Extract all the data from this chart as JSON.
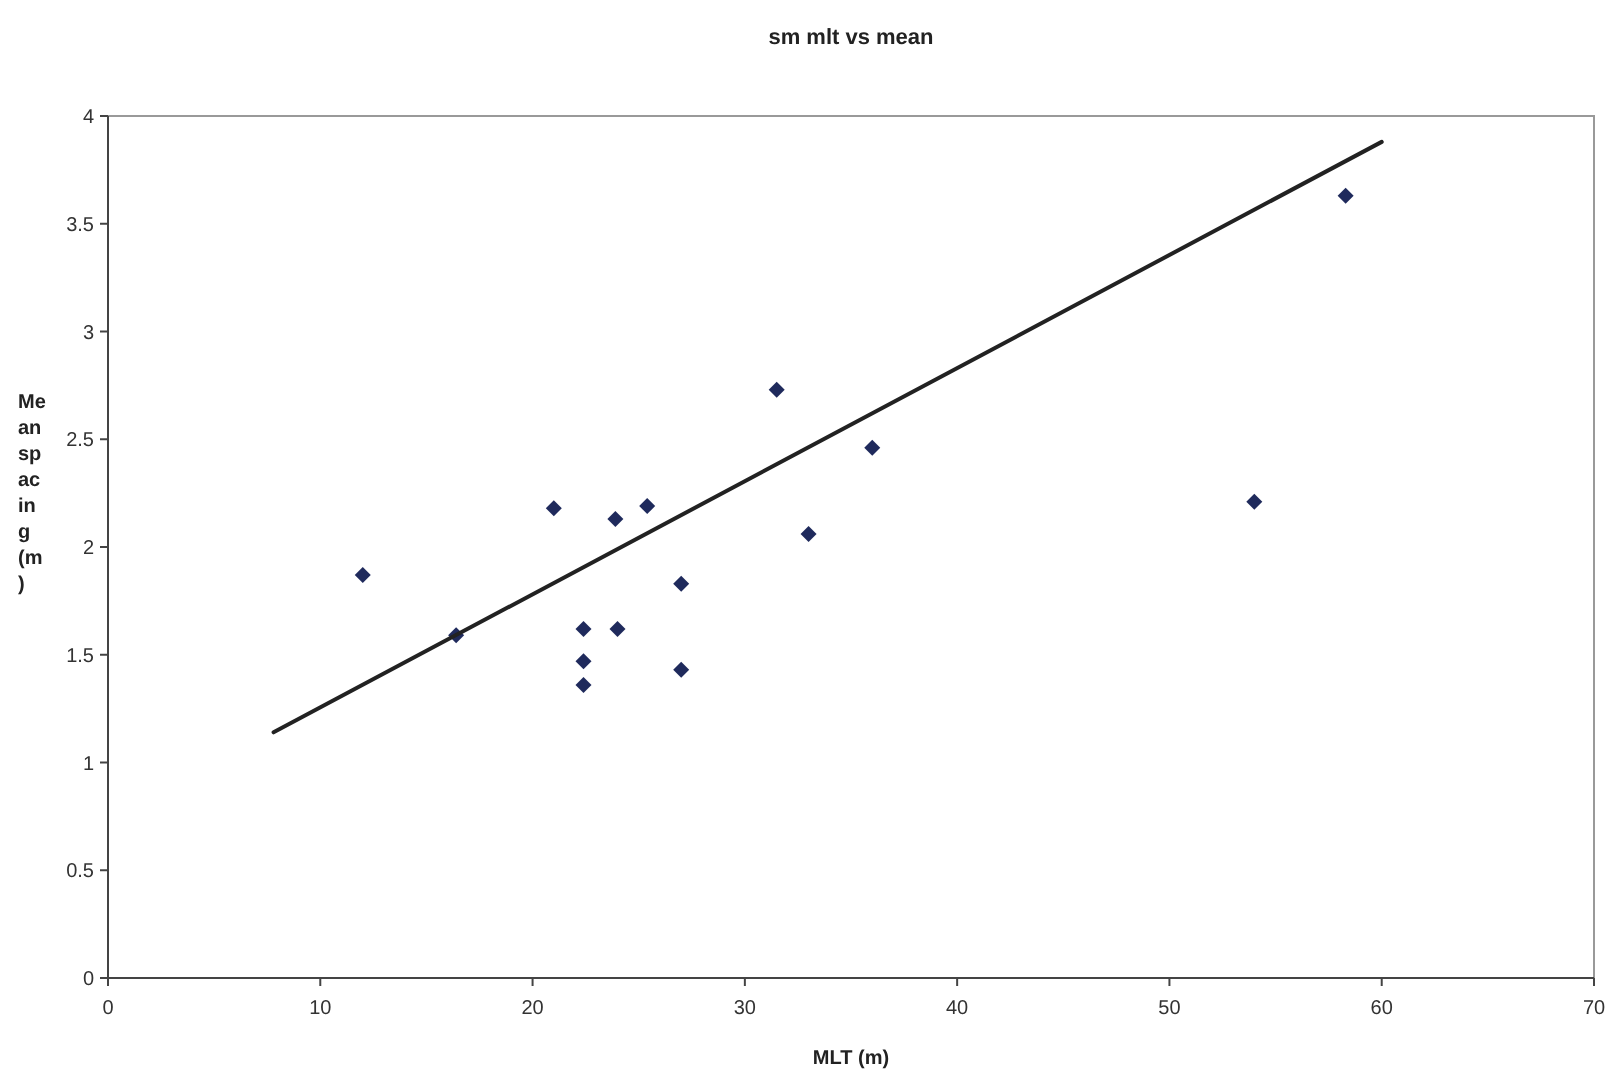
{
  "chart_data": {
    "type": "scatter",
    "title": "sm mlt vs mean",
    "xlabel": "MLT (m)",
    "ylabel": "Mean spacing (m)",
    "xlim": [
      0,
      70
    ],
    "xticks": [
      0,
      10,
      20,
      30,
      40,
      50,
      60,
      70
    ],
    "ylim": [
      0,
      4
    ],
    "yticks": [
      0,
      0.5,
      1,
      1.5,
      2,
      2.5,
      3,
      3.5,
      4
    ],
    "grid": false,
    "marker": "diamond",
    "series": [
      {
        "color": "#1f2a5c",
        "x": [
          12,
          16.4,
          21,
          22.4,
          22.4,
          22.4,
          23.9,
          24,
          25.4,
          27,
          27,
          31.5,
          33,
          36,
          54,
          58.3
        ],
        "values": [
          1.87,
          1.59,
          2.18,
          1.62,
          1.47,
          1.36,
          2.13,
          1.62,
          2.19,
          1.83,
          1.43,
          2.73,
          2.06,
          2.46,
          2.21,
          3.63
        ]
      },
      {
        "type": "line",
        "color": "#222222",
        "marker": "none",
        "line_style": "solid",
        "x": [
          7.8,
          60
        ],
        "values": [
          1.14,
          3.88
        ]
      }
    ]
  }
}
